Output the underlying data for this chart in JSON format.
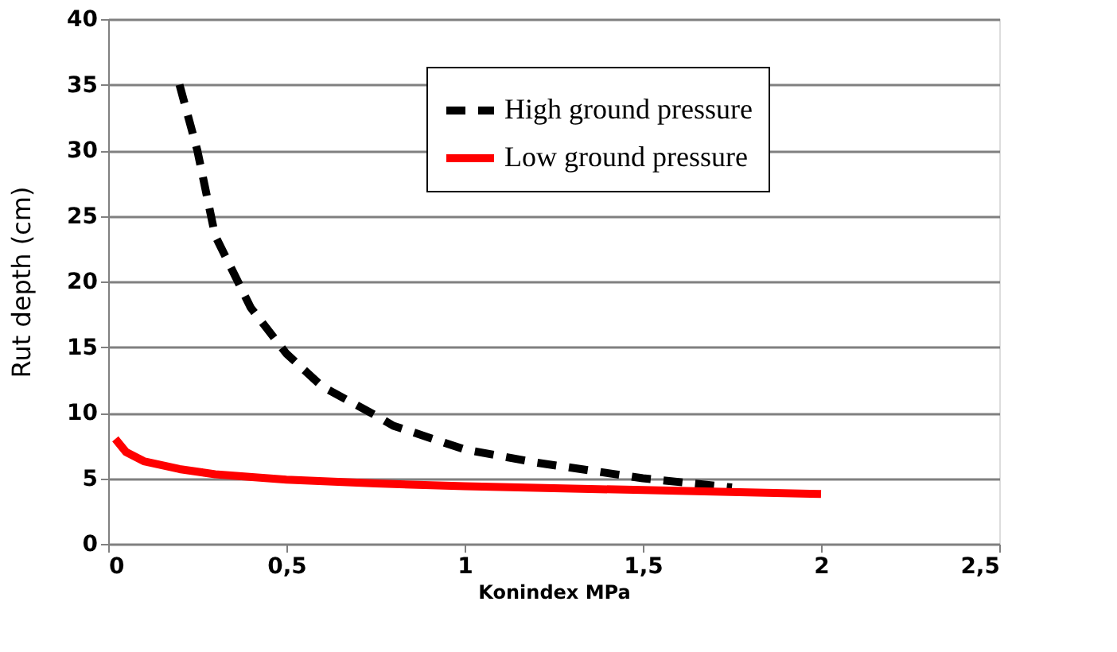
{
  "chart_data": {
    "type": "line",
    "xlabel": "Konindex MPa",
    "ylabel": "Rut depth (cm)",
    "xlim": [
      0,
      2.5
    ],
    "xticks": [
      0,
      {
        "value": 0.5,
        "label": "0,5"
      },
      1,
      {
        "value": 1.5,
        "label": "1,5"
      },
      2,
      {
        "value": 2.5,
        "label": "2,5"
      }
    ],
    "ylim": [
      0,
      40
    ],
    "yticks": [
      0,
      5,
      10,
      15,
      20,
      25,
      30,
      35,
      40
    ],
    "grid": "y",
    "legend": "top",
    "marker": "none",
    "series": [
      {
        "name": "High ground pressure",
        "color": "#000000",
        "line_style": "dashed",
        "x": [
          0.2,
          0.25,
          0.3,
          0.4,
          0.5,
          0.6,
          0.75,
          0.8,
          1.0,
          1.2,
          1.5,
          1.75
        ],
        "values": [
          35,
          30,
          23.5,
          18,
          14.5,
          12,
          9.8,
          9,
          7.2,
          6.2,
          5,
          4.3
        ]
      },
      {
        "name": "Low ground pressure",
        "color": "#ff0000",
        "line_style": "solid",
        "x": [
          0.02,
          0.05,
          0.1,
          0.2,
          0.3,
          0.5,
          0.75,
          1.0,
          1.5,
          2.0
        ],
        "values": [
          8,
          7,
          6.3,
          5.7,
          5.3,
          4.9,
          4.6,
          4.4,
          4.1,
          3.8
        ]
      }
    ]
  }
}
